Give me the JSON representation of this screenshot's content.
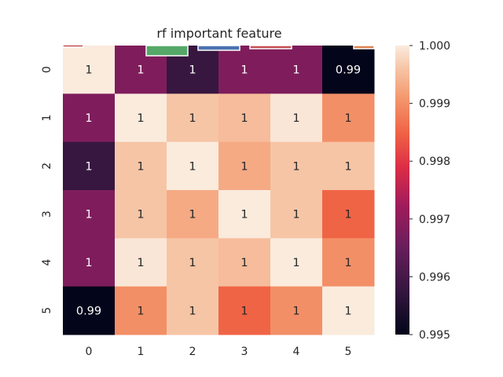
{
  "chart_data": {
    "type": "heatmap",
    "title": "rf important feature",
    "x_categories": [
      "0",
      "1",
      "2",
      "3",
      "4",
      "5"
    ],
    "y_categories": [
      "0",
      "1",
      "2",
      "3",
      "4",
      "5"
    ],
    "values": [
      [
        1.0,
        0.9968,
        0.9958,
        0.9968,
        0.9968,
        0.995
      ],
      [
        0.9968,
        1.0,
        0.9996,
        0.9995,
        0.99995,
        0.999
      ],
      [
        0.9958,
        0.9996,
        1.0,
        0.9993,
        0.9996,
        0.9996
      ],
      [
        0.9968,
        0.9996,
        0.9993,
        1.0,
        0.9996,
        0.9985
      ],
      [
        0.9968,
        0.99995,
        0.9996,
        0.9995,
        1.0,
        0.999
      ],
      [
        0.995,
        0.999,
        0.9996,
        0.9985,
        0.999,
        1.0
      ]
    ],
    "annotations": [
      [
        "1",
        "1",
        "1",
        "1",
        "1",
        "0.99"
      ],
      [
        "1",
        "1",
        "1",
        "1",
        "1",
        "1"
      ],
      [
        "1",
        "1",
        "1",
        "1",
        "1",
        "1"
      ],
      [
        "1",
        "1",
        "1",
        "1",
        "1",
        "1"
      ],
      [
        "1",
        "1",
        "1",
        "1",
        "1",
        "1"
      ],
      [
        "0.99",
        "1",
        "1",
        "1",
        "1",
        "1"
      ]
    ],
    "colorbar": {
      "min": 0.995,
      "max": 1.0,
      "ticks": [
        "0.995",
        "0.996",
        "0.997",
        "0.998",
        "0.999",
        "1.000"
      ],
      "colormap": "rocket"
    },
    "legend_fragments": [
      {
        "color": "#c44e52"
      },
      {
        "color": "#55a868"
      },
      {
        "color": "#4c72b0"
      },
      {
        "color": "#c44e52"
      },
      {
        "color": "#dd8452"
      }
    ]
  }
}
